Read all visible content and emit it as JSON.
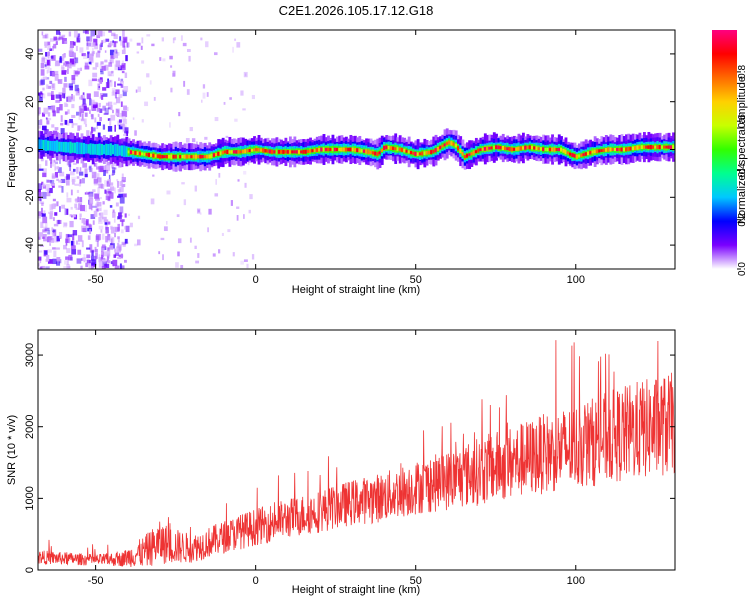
{
  "title": "C2E1.2026.105.17.12.G18",
  "colorbar": {
    "label": "Normalized spectral amplitude",
    "ticks": [
      "0.0",
      "0.2",
      "0.4",
      "0.6",
      "0.8"
    ],
    "tick_values": [
      0.0,
      0.2,
      0.4,
      0.6,
      0.8
    ],
    "range": [
      0,
      0.97
    ],
    "colors": [
      "#ffffff",
      "#7a00ff",
      "#0000ff",
      "#00c8ff",
      "#00ff90",
      "#32ff00",
      "#c8ff00",
      "#ffd000",
      "#ff6a00",
      "#ff0000",
      "#ff0080"
    ]
  },
  "chart_data": [
    {
      "type": "heatmap",
      "name": "spectrogram",
      "xlabel": "Height of straight line (km)",
      "ylabel": "Frequency (Hz)",
      "xlim": [
        -68,
        131
      ],
      "ylim": [
        -50,
        50
      ],
      "xticks": [
        -50,
        0,
        50,
        100
      ],
      "xtick_labels": [
        "-50",
        "0",
        "50",
        "100"
      ],
      "yticks": [
        -40,
        -20,
        0,
        20,
        40
      ],
      "ytick_labels": [
        "-40",
        "-20",
        "0",
        "20",
        "40"
      ],
      "ridge_x": [
        -68,
        -60,
        -50,
        -45,
        -40,
        -35,
        -30,
        -25,
        -20,
        -15,
        -10,
        -5,
        0,
        5,
        10,
        15,
        20,
        25,
        30,
        35,
        38,
        40,
        45,
        50,
        55,
        60,
        62,
        65,
        70,
        75,
        80,
        85,
        90,
        95,
        98,
        100,
        105,
        110,
        115,
        120,
        125,
        131
      ],
      "ridge_y": [
        2,
        1,
        0,
        0,
        -1,
        -2,
        -3,
        -3,
        -3,
        -3,
        -1,
        -1,
        0,
        -1,
        -1,
        -1,
        0,
        0,
        0,
        -1,
        -2,
        1,
        0,
        -2,
        -1,
        3,
        2,
        -3,
        0,
        1,
        0,
        1,
        0,
        0,
        -2,
        -3,
        -1,
        0,
        0,
        1,
        1,
        1
      ],
      "noise_region_x": [
        -68,
        -40
      ]
    },
    {
      "type": "line",
      "name": "snr",
      "xlabel": "Height of straight line (km)",
      "ylabel": "SNR (10 * v/v)",
      "xlim": [
        -68,
        131
      ],
      "ylim": [
        0,
        3350
      ],
      "xticks": [
        -50,
        0,
        50,
        100
      ],
      "xtick_labels": [
        "-50",
        "0",
        "50",
        "100"
      ],
      "yticks": [
        0,
        1000,
        2000,
        3000
      ],
      "ytick_labels": [
        "0",
        "1000",
        "2000",
        "3000"
      ],
      "color": "#ee3333",
      "trend_x": [
        -68,
        -60,
        -50,
        -42,
        -35,
        -30,
        -25,
        -20,
        -10,
        0,
        10,
        20,
        30,
        40,
        50,
        60,
        70,
        80,
        90,
        100,
        110,
        120,
        131
      ],
      "trend_y": [
        180,
        160,
        140,
        150,
        250,
        380,
        330,
        300,
        460,
        600,
        720,
        820,
        940,
        1020,
        1150,
        1250,
        1380,
        1500,
        1620,
        1720,
        1850,
        1950,
        2050
      ],
      "spread": [
        100,
        90,
        80,
        100,
        220,
        300,
        250,
        200,
        230,
        260,
        280,
        300,
        320,
        350,
        380,
        420,
        480,
        520,
        560,
        600,
        650,
        700,
        720
      ]
    }
  ]
}
